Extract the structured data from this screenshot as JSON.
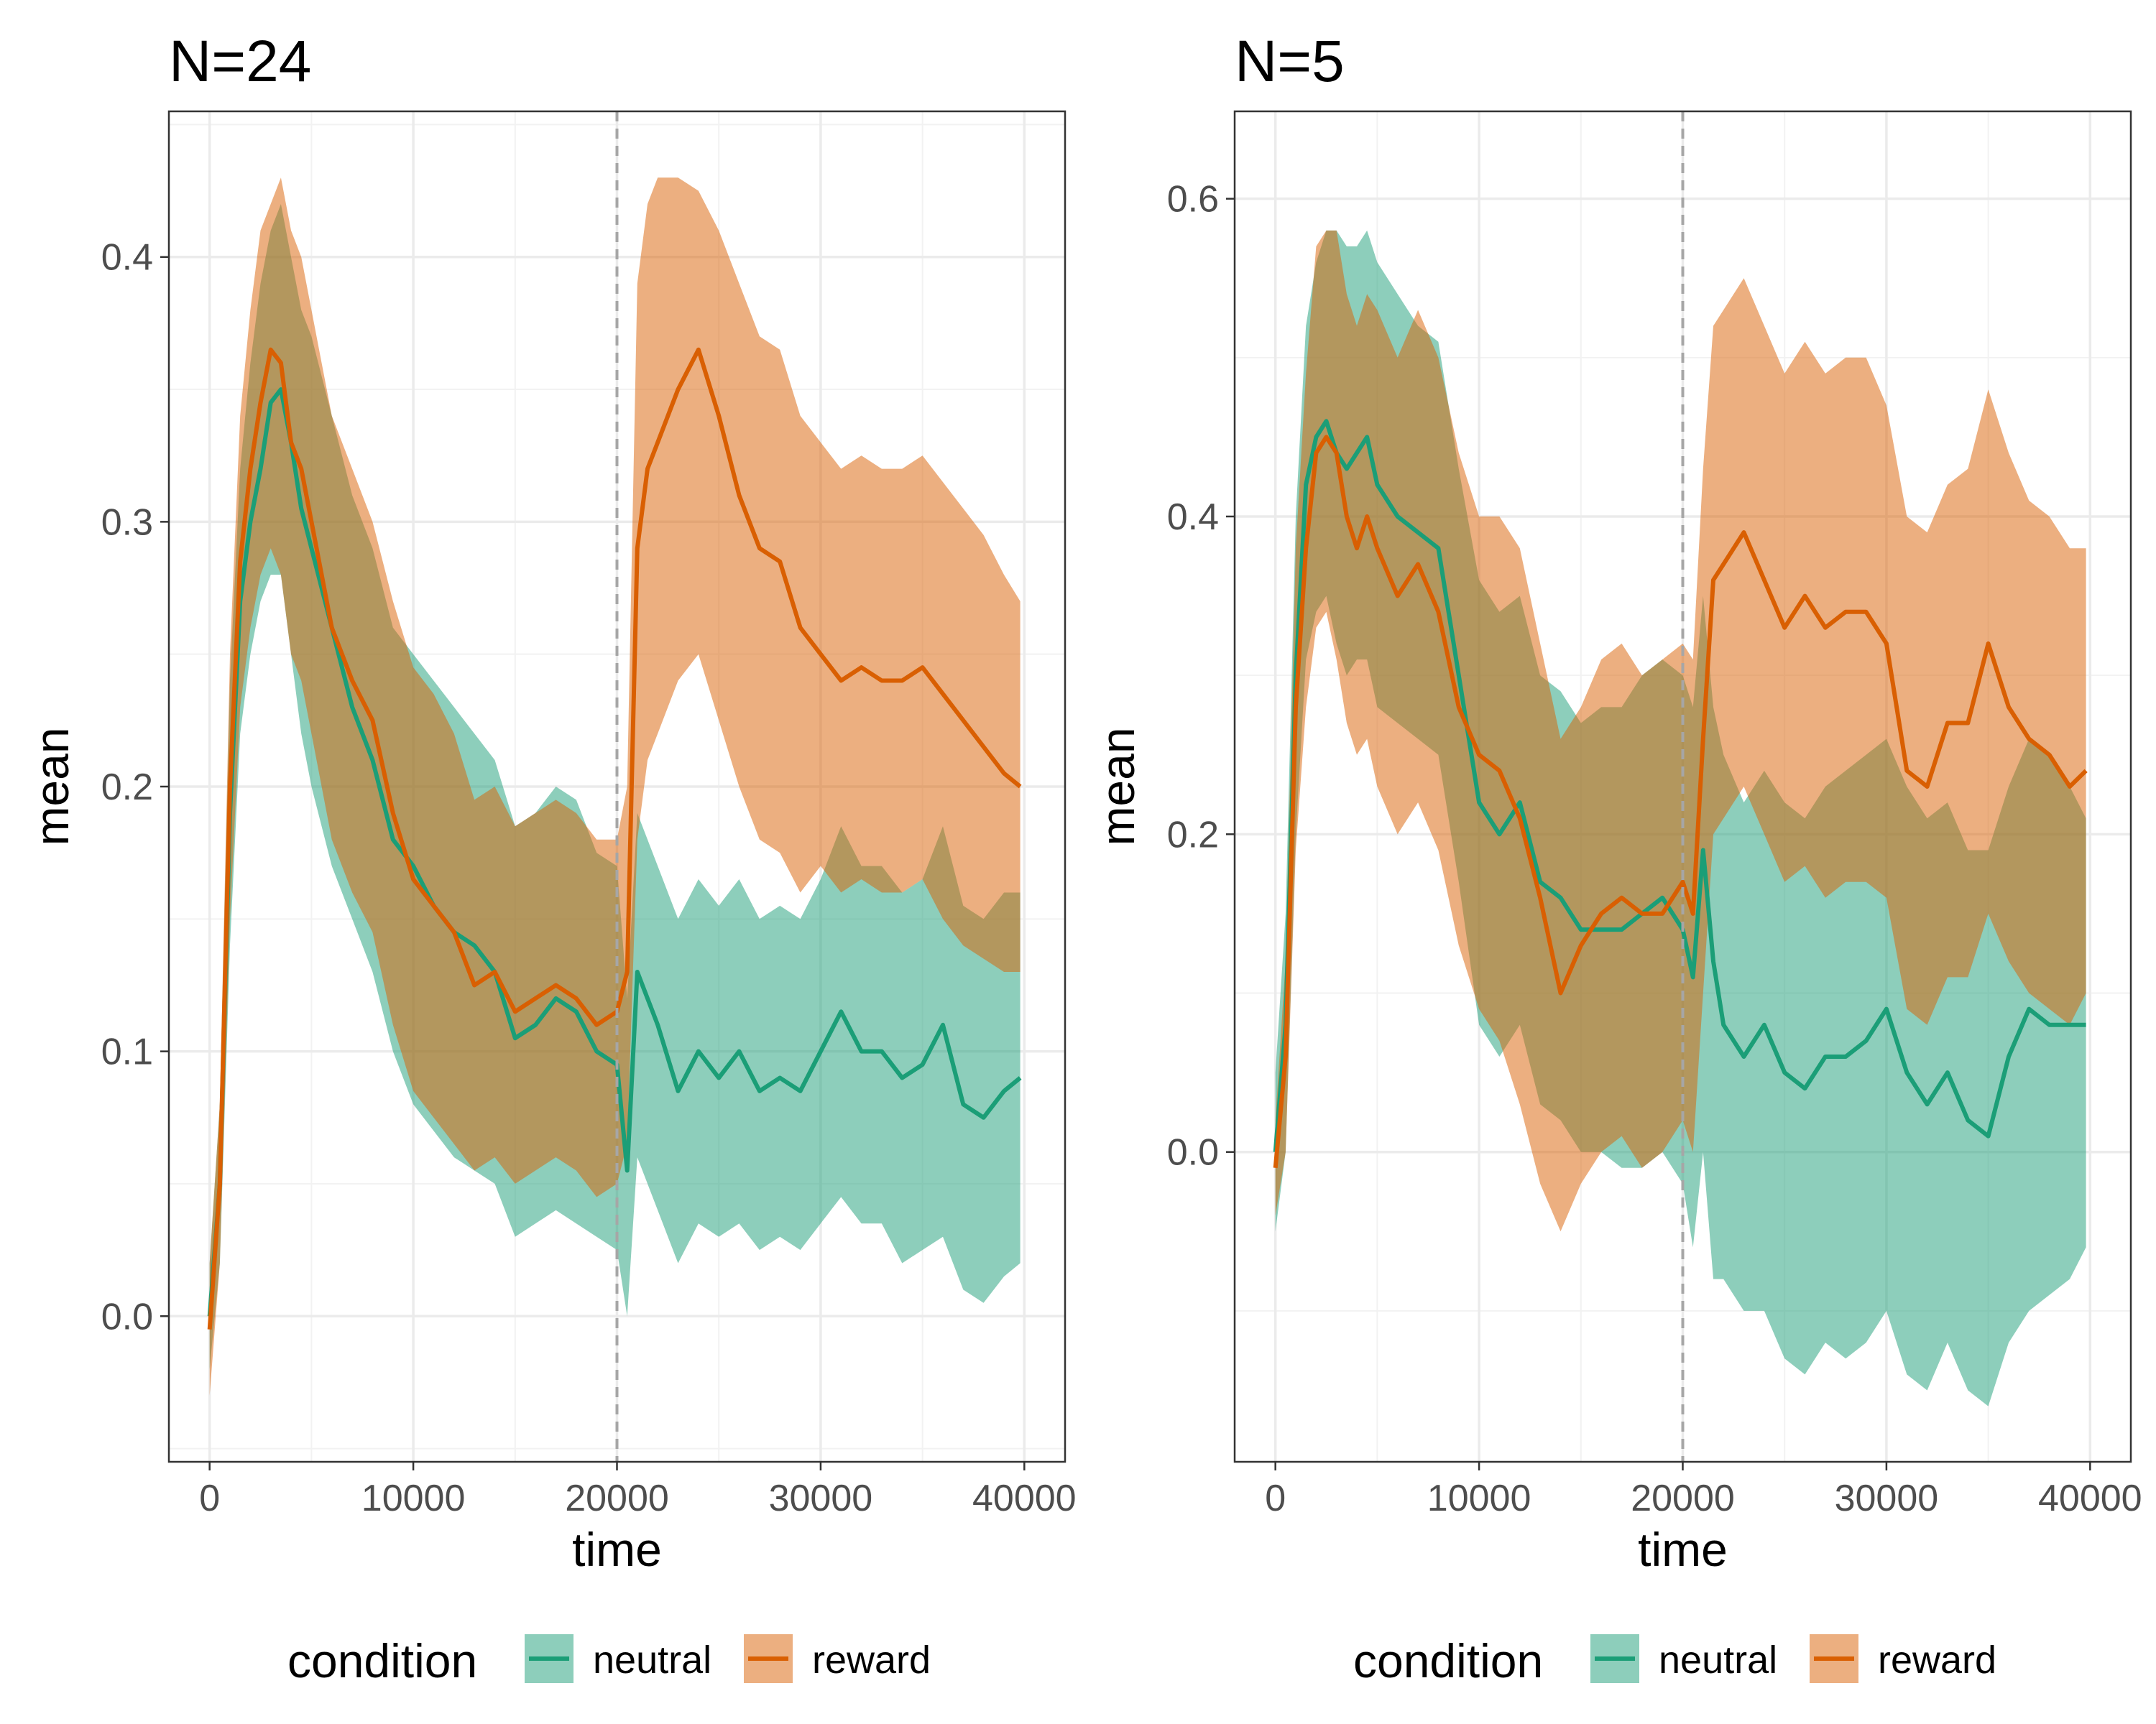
{
  "chart_data": [
    {
      "type": "line",
      "title": "N=24",
      "xlabel": "time",
      "ylabel": "mean",
      "xlim": [
        -2000,
        42000
      ],
      "ylim": [
        -0.055,
        0.455
      ],
      "x_ticks": [
        0,
        10000,
        20000,
        30000,
        40000
      ],
      "x_tick_labels": [
        "0",
        "10000",
        "20000",
        "30000",
        "40000"
      ],
      "y_ticks": [
        0.0,
        0.1,
        0.2,
        0.3,
        0.4
      ],
      "y_tick_labels": [
        "0.0",
        "0.1",
        "0.2",
        "0.3",
        "0.4"
      ],
      "grid": true,
      "vline": 20000,
      "legend": {
        "title": "condition",
        "position": "bottom"
      },
      "series": [
        {
          "name": "neutral",
          "color": "#1b9e77",
          "ribbon_color": "#8ccdb6",
          "x": [
            0,
            500,
            1000,
            1500,
            2000,
            2500,
            3000,
            3500,
            4000,
            4500,
            5000,
            6000,
            7000,
            8000,
            9000,
            10000,
            11000,
            12000,
            13000,
            14000,
            15000,
            16000,
            17000,
            18000,
            19000,
            20000,
            20500,
            21000,
            21500,
            22000,
            23000,
            24000,
            25000,
            26000,
            27000,
            28000,
            29000,
            30000,
            31000,
            32000,
            33000,
            34000,
            35000,
            36000,
            37000,
            38000,
            39000,
            39800
          ],
          "y": [
            0.0,
            0.05,
            0.19,
            0.27,
            0.3,
            0.32,
            0.345,
            0.35,
            0.33,
            0.305,
            0.29,
            0.26,
            0.23,
            0.21,
            0.18,
            0.17,
            0.155,
            0.145,
            0.14,
            0.13,
            0.105,
            0.11,
            0.12,
            0.115,
            0.1,
            0.095,
            0.055,
            0.13,
            0.12,
            0.11,
            0.085,
            0.1,
            0.09,
            0.1,
            0.085,
            0.09,
            0.085,
            0.1,
            0.115,
            0.1,
            0.1,
            0.09,
            0.095,
            0.11,
            0.08,
            0.075,
            0.085,
            0.09
          ],
          "lower": [
            -0.02,
            0.02,
            0.14,
            0.22,
            0.25,
            0.27,
            0.28,
            0.28,
            0.25,
            0.22,
            0.2,
            0.17,
            0.15,
            0.13,
            0.1,
            0.08,
            0.07,
            0.06,
            0.055,
            0.05,
            0.03,
            0.035,
            0.04,
            0.035,
            0.03,
            0.025,
            0.0,
            0.06,
            0.05,
            0.04,
            0.02,
            0.035,
            0.03,
            0.035,
            0.025,
            0.03,
            0.025,
            0.035,
            0.045,
            0.035,
            0.035,
            0.02,
            0.025,
            0.03,
            0.01,
            0.005,
            0.015,
            0.02
          ],
          "upper": [
            0.02,
            0.08,
            0.24,
            0.32,
            0.36,
            0.39,
            0.41,
            0.42,
            0.4,
            0.38,
            0.37,
            0.34,
            0.31,
            0.29,
            0.26,
            0.25,
            0.24,
            0.23,
            0.22,
            0.21,
            0.185,
            0.19,
            0.2,
            0.195,
            0.175,
            0.17,
            0.12,
            0.19,
            0.18,
            0.17,
            0.15,
            0.165,
            0.155,
            0.165,
            0.15,
            0.155,
            0.15,
            0.165,
            0.185,
            0.17,
            0.17,
            0.16,
            0.165,
            0.185,
            0.155,
            0.15,
            0.16,
            0.16
          ]
        },
        {
          "name": "reward",
          "color": "#d95f02",
          "ribbon_color": "#ebaa80",
          "x": [
            0,
            500,
            1000,
            1500,
            2000,
            2500,
            3000,
            3500,
            4000,
            4500,
            5000,
            6000,
            7000,
            8000,
            9000,
            10000,
            11000,
            12000,
            13000,
            14000,
            15000,
            16000,
            17000,
            18000,
            19000,
            20000,
            20500,
            21000,
            21500,
            22000,
            23000,
            24000,
            25000,
            26000,
            27000,
            28000,
            29000,
            30000,
            31000,
            32000,
            33000,
            34000,
            35000,
            36000,
            37000,
            38000,
            39000,
            39800
          ],
          "y": [
            -0.005,
            0.05,
            0.2,
            0.285,
            0.32,
            0.345,
            0.365,
            0.36,
            0.33,
            0.32,
            0.3,
            0.26,
            0.24,
            0.225,
            0.19,
            0.165,
            0.155,
            0.145,
            0.125,
            0.13,
            0.115,
            0.12,
            0.125,
            0.12,
            0.11,
            0.115,
            0.13,
            0.29,
            0.32,
            0.33,
            0.35,
            0.365,
            0.34,
            0.31,
            0.29,
            0.285,
            0.26,
            0.25,
            0.24,
            0.245,
            0.24,
            0.24,
            0.245,
            0.235,
            0.225,
            0.215,
            0.205,
            0.2
          ],
          "lower": [
            -0.03,
            0.02,
            0.15,
            0.23,
            0.26,
            0.28,
            0.29,
            0.28,
            0.25,
            0.24,
            0.22,
            0.18,
            0.16,
            0.145,
            0.11,
            0.085,
            0.075,
            0.065,
            0.055,
            0.06,
            0.05,
            0.055,
            0.06,
            0.055,
            0.045,
            0.05,
            0.065,
            0.18,
            0.21,
            0.22,
            0.24,
            0.25,
            0.225,
            0.2,
            0.18,
            0.175,
            0.16,
            0.17,
            0.16,
            0.165,
            0.16,
            0.16,
            0.165,
            0.15,
            0.14,
            0.135,
            0.13,
            0.13
          ],
          "upper": [
            0.02,
            0.08,
            0.25,
            0.34,
            0.38,
            0.41,
            0.42,
            0.43,
            0.41,
            0.4,
            0.38,
            0.34,
            0.32,
            0.3,
            0.27,
            0.245,
            0.235,
            0.22,
            0.195,
            0.2,
            0.185,
            0.19,
            0.195,
            0.19,
            0.18,
            0.18,
            0.2,
            0.39,
            0.42,
            0.43,
            0.43,
            0.425,
            0.41,
            0.39,
            0.37,
            0.365,
            0.34,
            0.33,
            0.32,
            0.325,
            0.32,
            0.32,
            0.325,
            0.315,
            0.305,
            0.295,
            0.28,
            0.27
          ]
        }
      ]
    },
    {
      "type": "line",
      "title": "N=5",
      "xlabel": "time",
      "ylabel": "mean",
      "xlim": [
        -2000,
        42000
      ],
      "ylim": [
        -0.195,
        0.655
      ],
      "x_ticks": [
        0,
        10000,
        20000,
        30000,
        40000
      ],
      "x_tick_labels": [
        "0",
        "10000",
        "20000",
        "30000",
        "40000"
      ],
      "y_ticks": [
        0.0,
        0.2,
        0.4,
        0.6
      ],
      "y_tick_labels": [
        "0.0",
        "0.2",
        "0.4",
        "0.6"
      ],
      "grid": true,
      "vline": 20000,
      "legend": {
        "title": "condition",
        "position": "bottom"
      },
      "series": [
        {
          "name": "neutral",
          "color": "#1b9e77",
          "ribbon_color": "#8ccdb6",
          "x": [
            0,
            500,
            1000,
            1500,
            2000,
            2500,
            3000,
            3500,
            4000,
            4500,
            5000,
            6000,
            7000,
            8000,
            9000,
            10000,
            11000,
            12000,
            13000,
            14000,
            15000,
            16000,
            17000,
            18000,
            19000,
            20000,
            20500,
            21000,
            21500,
            22000,
            23000,
            24000,
            25000,
            26000,
            27000,
            28000,
            29000,
            30000,
            31000,
            32000,
            33000,
            34000,
            35000,
            36000,
            37000,
            38000,
            39000,
            39800
          ],
          "y": [
            0.0,
            0.08,
            0.3,
            0.42,
            0.45,
            0.46,
            0.44,
            0.43,
            0.44,
            0.45,
            0.42,
            0.4,
            0.39,
            0.38,
            0.3,
            0.22,
            0.2,
            0.22,
            0.17,
            0.16,
            0.14,
            0.14,
            0.14,
            0.15,
            0.16,
            0.14,
            0.11,
            0.19,
            0.12,
            0.08,
            0.06,
            0.08,
            0.05,
            0.04,
            0.06,
            0.06,
            0.07,
            0.09,
            0.05,
            0.03,
            0.05,
            0.02,
            0.01,
            0.06,
            0.09,
            0.08,
            0.08,
            0.08
          ],
          "lower": [
            -0.05,
            0.0,
            0.2,
            0.31,
            0.34,
            0.35,
            0.32,
            0.3,
            0.31,
            0.31,
            0.28,
            0.27,
            0.26,
            0.25,
            0.17,
            0.08,
            0.06,
            0.08,
            0.03,
            0.02,
            0.0,
            0.0,
            -0.01,
            -0.01,
            0.0,
            -0.02,
            -0.06,
            0.0,
            -0.08,
            -0.08,
            -0.1,
            -0.1,
            -0.13,
            -0.14,
            -0.12,
            -0.13,
            -0.12,
            -0.1,
            -0.14,
            -0.15,
            -0.12,
            -0.15,
            -0.16,
            -0.12,
            -0.1,
            -0.09,
            -0.08,
            -0.06
          ],
          "upper": [
            0.05,
            0.15,
            0.4,
            0.52,
            0.56,
            0.58,
            0.58,
            0.57,
            0.57,
            0.58,
            0.56,
            0.54,
            0.52,
            0.51,
            0.43,
            0.36,
            0.34,
            0.35,
            0.3,
            0.29,
            0.27,
            0.28,
            0.28,
            0.3,
            0.31,
            0.3,
            0.28,
            0.35,
            0.28,
            0.25,
            0.22,
            0.24,
            0.22,
            0.21,
            0.23,
            0.24,
            0.25,
            0.26,
            0.23,
            0.21,
            0.22,
            0.19,
            0.19,
            0.23,
            0.26,
            0.25,
            0.23,
            0.21
          ]
        },
        {
          "name": "reward",
          "color": "#d95f02",
          "ribbon_color": "#ebaa80",
          "x": [
            0,
            500,
            1000,
            1500,
            2000,
            2500,
            3000,
            3500,
            4000,
            4500,
            5000,
            6000,
            7000,
            8000,
            9000,
            10000,
            11000,
            12000,
            13000,
            14000,
            15000,
            16000,
            17000,
            18000,
            19000,
            20000,
            20500,
            21000,
            21500,
            22000,
            23000,
            24000,
            25000,
            26000,
            27000,
            28000,
            29000,
            30000,
            31000,
            32000,
            33000,
            34000,
            35000,
            36000,
            37000,
            38000,
            39000,
            39800
          ],
          "y": [
            -0.01,
            0.06,
            0.28,
            0.38,
            0.44,
            0.45,
            0.44,
            0.4,
            0.38,
            0.4,
            0.38,
            0.35,
            0.37,
            0.34,
            0.28,
            0.25,
            0.24,
            0.21,
            0.16,
            0.1,
            0.13,
            0.15,
            0.16,
            0.15,
            0.15,
            0.17,
            0.15,
            0.26,
            0.36,
            0.37,
            0.39,
            0.36,
            0.33,
            0.35,
            0.33,
            0.34,
            0.34,
            0.32,
            0.24,
            0.23,
            0.27,
            0.27,
            0.32,
            0.28,
            0.26,
            0.25,
            0.23,
            0.24
          ],
          "lower": [
            -0.04,
            0.0,
            0.19,
            0.28,
            0.33,
            0.34,
            0.31,
            0.27,
            0.25,
            0.26,
            0.23,
            0.2,
            0.22,
            0.19,
            0.13,
            0.09,
            0.07,
            0.03,
            -0.02,
            -0.05,
            -0.02,
            0.0,
            0.01,
            -0.01,
            0.0,
            0.02,
            0.0,
            0.1,
            0.2,
            0.21,
            0.23,
            0.2,
            0.17,
            0.18,
            0.16,
            0.17,
            0.17,
            0.16,
            0.09,
            0.08,
            0.11,
            0.11,
            0.15,
            0.12,
            0.1,
            0.09,
            0.08,
            0.1
          ],
          "upper": [
            0.02,
            0.12,
            0.38,
            0.49,
            0.57,
            0.58,
            0.58,
            0.54,
            0.52,
            0.54,
            0.53,
            0.5,
            0.53,
            0.5,
            0.44,
            0.4,
            0.4,
            0.38,
            0.32,
            0.26,
            0.28,
            0.31,
            0.32,
            0.3,
            0.31,
            0.32,
            0.31,
            0.43,
            0.52,
            0.53,
            0.55,
            0.52,
            0.49,
            0.51,
            0.49,
            0.5,
            0.5,
            0.47,
            0.4,
            0.39,
            0.42,
            0.43,
            0.48,
            0.44,
            0.41,
            0.4,
            0.38,
            0.38
          ]
        }
      ]
    }
  ]
}
